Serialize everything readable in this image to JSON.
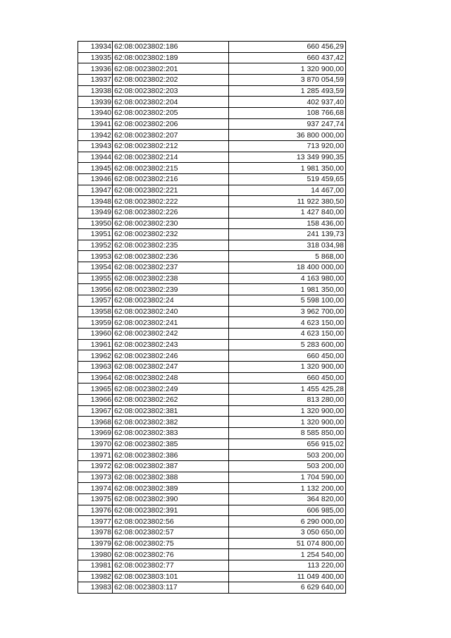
{
  "table": {
    "rows": [
      [
        "13934",
        "62:08:0023802:186",
        "660 456,29"
      ],
      [
        "13935",
        "62:08:0023802:189",
        "660 437,42"
      ],
      [
        "13936",
        "62:08:0023802:201",
        "1 320 900,00"
      ],
      [
        "13937",
        "62:08:0023802:202",
        "3 870 054,59"
      ],
      [
        "13938",
        "62:08:0023802:203",
        "1 285 493,59"
      ],
      [
        "13939",
        "62:08:0023802:204",
        "402 937,40"
      ],
      [
        "13940",
        "62:08:0023802:205",
        "108 766,68"
      ],
      [
        "13941",
        "62:08:0023802:206",
        "937 247,74"
      ],
      [
        "13942",
        "62:08:0023802:207",
        "36 800 000,00"
      ],
      [
        "13943",
        "62:08:0023802:212",
        "713 920,00"
      ],
      [
        "13944",
        "62:08:0023802:214",
        "13 349 990,35"
      ],
      [
        "13945",
        "62:08:0023802:215",
        "1 981 350,00"
      ],
      [
        "13946",
        "62:08:0023802:216",
        "519 459,65"
      ],
      [
        "13947",
        "62:08:0023802:221",
        "14 467,00"
      ],
      [
        "13948",
        "62:08:0023802:222",
        "11 922 380,50"
      ],
      [
        "13949",
        "62:08:0023802:226",
        "1 427 840,00"
      ],
      [
        "13950",
        "62:08:0023802:230",
        "158 436,00"
      ],
      [
        "13951",
        "62:08:0023802:232",
        "241 139,73"
      ],
      [
        "13952",
        "62:08:0023802:235",
        "318 034,98"
      ],
      [
        "13953",
        "62:08:0023802:236",
        "5 868,00"
      ],
      [
        "13954",
        "62:08:0023802:237",
        "18 400 000,00"
      ],
      [
        "13955",
        "62:08:0023802:238",
        "4 163 980,00"
      ],
      [
        "13956",
        "62:08:0023802:239",
        "1 981 350,00"
      ],
      [
        "13957",
        "62:08:0023802:24",
        "5 598 100,00"
      ],
      [
        "13958",
        "62:08:0023802:240",
        "3 962 700,00"
      ],
      [
        "13959",
        "62:08:0023802:241",
        "4 623 150,00"
      ],
      [
        "13960",
        "62:08:0023802:242",
        "4 623 150,00"
      ],
      [
        "13961",
        "62:08:0023802:243",
        "5 283 600,00"
      ],
      [
        "13962",
        "62:08:0023802:246",
        "660 450,00"
      ],
      [
        "13963",
        "62:08:0023802:247",
        "1 320 900,00"
      ],
      [
        "13964",
        "62:08:0023802:248",
        "660 450,00"
      ],
      [
        "13965",
        "62:08:0023802:249",
        "1 455 425,28"
      ],
      [
        "13966",
        "62:08:0023802:262",
        "813 280,00"
      ],
      [
        "13967",
        "62:08:0023802:381",
        "1 320 900,00"
      ],
      [
        "13968",
        "62:08:0023802:382",
        "1 320 900,00"
      ],
      [
        "13969",
        "62:08:0023802:383",
        "8 585 850,00"
      ],
      [
        "13970",
        "62:08:0023802:385",
        "656 915,02"
      ],
      [
        "13971",
        "62:08:0023802:386",
        "503 200,00"
      ],
      [
        "13972",
        "62:08:0023802:387",
        "503 200,00"
      ],
      [
        "13973",
        "62:08:0023802:388",
        "1 704 590,00"
      ],
      [
        "13974",
        "62:08:0023802:389",
        "1 132 200,00"
      ],
      [
        "13975",
        "62:08:0023802:390",
        "364 820,00"
      ],
      [
        "13976",
        "62:08:0023802:391",
        "606 985,00"
      ],
      [
        "13977",
        "62:08:0023802:56",
        "6 290 000,00"
      ],
      [
        "13978",
        "62:08:0023802:57",
        "3 050 650,00"
      ],
      [
        "13979",
        "62:08:0023802:75",
        "51 074 800,00"
      ],
      [
        "13980",
        "62:08:0023802:76",
        "1 254 540,00"
      ],
      [
        "13981",
        "62:08:0023802:77",
        "113 220,00"
      ],
      [
        "13982",
        "62:08:0023803:101",
        "11 049 400,00"
      ],
      [
        "13983",
        "62:08:0023803:117",
        "6 629 640,00"
      ]
    ]
  }
}
